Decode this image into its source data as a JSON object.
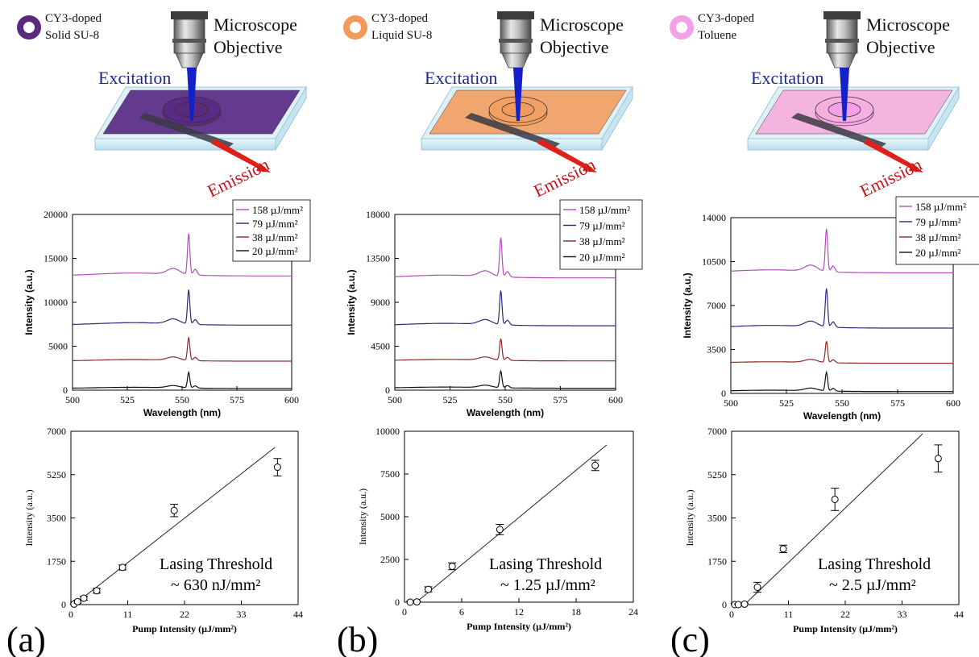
{
  "panels": [
    {
      "label": "(a)",
      "material": [
        "CY3-doped",
        "Solid SU-8"
      ],
      "ring_color": "#5b2a7c",
      "substrate_color": "#5a2b86",
      "objective": [
        "Microscope",
        "Objective"
      ],
      "excitation": "Excitation",
      "emission": "Emission",
      "threshold": [
        "Lasing Threshold",
        "~ 630 nJ/mm²"
      ]
    },
    {
      "label": "(b)",
      "material": [
        "CY3-doped",
        "Liquid SU-8"
      ],
      "ring_color": "#f29a5c",
      "substrate_color": "#f3a064",
      "objective": [
        "Microscope",
        "Objective"
      ],
      "excitation": "Excitation",
      "emission": "Emission",
      "threshold": [
        "Lasing Threshold",
        "~ 1.25 µJ/mm²"
      ]
    },
    {
      "label": "(c)",
      "material": [
        "CY3-doped",
        "Toluene"
      ],
      "ring_color": "#f4a0e8",
      "substrate_color": "#f5b0df",
      "objective": [
        "Microscope",
        "Objective"
      ],
      "excitation": "Excitation",
      "emission": "Emission",
      "threshold": [
        "Lasing Threshold",
        "~ 2.5 µJ/mm²"
      ]
    }
  ],
  "chart_data": [
    {
      "type": "line",
      "xlabel": "Wavelength (nm)",
      "ylabel": "Intensity (a.u.)",
      "xlim": [
        500,
        600
      ],
      "xticks": [
        "500",
        "525",
        "550",
        "575",
        "600"
      ],
      "ylim": [
        0,
        20000
      ],
      "yticks": [
        "0",
        "5000",
        "10000",
        "15000",
        "20000"
      ],
      "peak_nm": 553,
      "legend_position": "top-right",
      "series": [
        {
          "name": "158 µJ/mm²",
          "color": "#b04fb8",
          "baseline": 13000,
          "peak": 18500
        },
        {
          "name": "79 µJ/mm²",
          "color": "#2b2b7a",
          "baseline": 7400,
          "peak": 12000
        },
        {
          "name": "38 µJ/mm²",
          "color": "#8b2a2a",
          "baseline": 3300,
          "peak": 6400
        },
        {
          "name": "20 µJ/mm²",
          "color": "#111111",
          "baseline": 200,
          "peak": 2300
        }
      ]
    },
    {
      "type": "line",
      "xlabel": "Wavelength (nm)",
      "ylabel": "Intensity (a.u.)",
      "xlim": [
        500,
        600
      ],
      "xticks": [
        "500",
        "525",
        "550",
        "575",
        "600"
      ],
      "ylim": [
        0,
        18000
      ],
      "yticks": [
        "0",
        "4500",
        "9000",
        "13500",
        "18000"
      ],
      "peak_nm": 548,
      "legend_position": "top-right",
      "series": [
        {
          "name": "158 µJ/mm²",
          "color": "#b04fb8",
          "baseline": 11500,
          "peak": 16200
        },
        {
          "name": "79 µJ/mm²",
          "color": "#2b2b7a",
          "baseline": 6600,
          "peak": 10700
        },
        {
          "name": "38 µJ/mm²",
          "color": "#8b2a2a",
          "baseline": 3000,
          "peak": 5600
        },
        {
          "name": "20 µJ/mm²",
          "color": "#111111",
          "baseline": 200,
          "peak": 2200
        }
      ]
    },
    {
      "type": "line",
      "xlabel": "Wavelength (nm)",
      "ylabel": "Intensity (a.u.)",
      "xlim": [
        500,
        600
      ],
      "xticks": [
        "500",
        "525",
        "550",
        "575",
        "600"
      ],
      "ylim": [
        0,
        14000
      ],
      "yticks": [
        "0",
        "3500",
        "7000",
        "10500",
        "14000"
      ],
      "peak_nm": 543,
      "legend_position": "top-right",
      "series": [
        {
          "name": "158 µJ/mm²",
          "color": "#b04fb8",
          "baseline": 9600,
          "peak": 13600
        },
        {
          "name": "79 µJ/mm²",
          "color": "#2b2b7a",
          "baseline": 5200,
          "peak": 8800
        },
        {
          "name": "38 µJ/mm²",
          "color": "#8b2a2a",
          "baseline": 2400,
          "peak": 4400
        },
        {
          "name": "20 µJ/mm²",
          "color": "#111111",
          "baseline": 150,
          "peak": 1900
        }
      ]
    },
    {
      "type": "scatter",
      "xlabel": "Pump Intensity (µJ/mm²)",
      "ylabel": "Intensity (a.u.)",
      "xlim": [
        0,
        44
      ],
      "xticks": [
        "0",
        "11",
        "22",
        "33",
        "44"
      ],
      "ylim": [
        0,
        7000
      ],
      "yticks": [
        "0",
        "1750",
        "3500",
        "5250",
        "7000"
      ],
      "points": [
        {
          "x": 0.6,
          "y": 20,
          "err": 40
        },
        {
          "x": 1.3,
          "y": 120,
          "err": 60
        },
        {
          "x": 2.5,
          "y": 260,
          "err": 80
        },
        {
          "x": 5,
          "y": 560,
          "err": 100
        },
        {
          "x": 10,
          "y": 1500,
          "err": 100
        },
        {
          "x": 20,
          "y": 3800,
          "err": 250
        },
        {
          "x": 40,
          "y": 5550,
          "err": 350
        }
      ],
      "fit": {
        "x": [
          0.63,
          39.5
        ],
        "y": [
          0,
          6350
        ]
      }
    },
    {
      "type": "scatter",
      "xlabel": "Pump Intensity (µJ/mm²)",
      "ylabel": "Intensity (a.u.)",
      "xlim": [
        0,
        24
      ],
      "xticks": [
        "0",
        "6",
        "12",
        "18",
        "24"
      ],
      "ylim": [
        0,
        10000
      ],
      "yticks": [
        "0",
        "2500",
        "5000",
        "7500",
        "10000"
      ],
      "points": [
        {
          "x": 0.6,
          "y": 0,
          "err": 60
        },
        {
          "x": 1.3,
          "y": 20,
          "err": 60
        },
        {
          "x": 2.5,
          "y": 750,
          "err": 150
        },
        {
          "x": 5,
          "y": 2100,
          "err": 200
        },
        {
          "x": 10,
          "y": 4250,
          "err": 300
        },
        {
          "x": 20,
          "y": 8000,
          "err": 300
        }
      ],
      "fit": {
        "x": [
          1.25,
          21.2
        ],
        "y": [
          0,
          9200
        ]
      }
    },
    {
      "type": "scatter",
      "xlabel": "Pump Intensity (µJ/mm²)",
      "ylabel": "Intensity (a.u.)",
      "xlim": [
        0,
        44
      ],
      "xticks": [
        "0",
        "11",
        "22",
        "33",
        "44"
      ],
      "ylim": [
        0,
        7000
      ],
      "yticks": [
        "0",
        "1750",
        "3500",
        "5250",
        "7000"
      ],
      "points": [
        {
          "x": 0.6,
          "y": 0,
          "err": 40
        },
        {
          "x": 1.3,
          "y": 0,
          "err": 40
        },
        {
          "x": 2.5,
          "y": 20,
          "err": 40
        },
        {
          "x": 5,
          "y": 700,
          "err": 200
        },
        {
          "x": 10,
          "y": 2250,
          "err": 150
        },
        {
          "x": 20,
          "y": 4250,
          "err": 450
        },
        {
          "x": 40,
          "y": 5900,
          "err": 550
        }
      ],
      "fit": {
        "x": [
          2.5,
          37
        ],
        "y": [
          0,
          6900
        ]
      }
    }
  ]
}
